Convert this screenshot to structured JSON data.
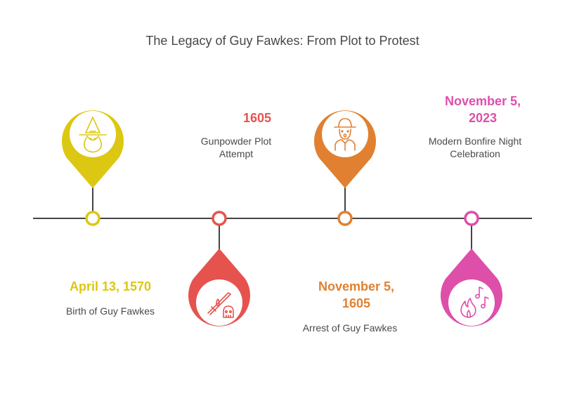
{
  "title": "The Legacy of Guy Fawkes: From Plot to Protest",
  "colors": {
    "line": "#444444",
    "yellow": "#dcc712",
    "red": "#e6534f",
    "orange": "#e08030",
    "pink": "#de4fa9"
  },
  "events": [
    {
      "date": "April 13, 1570",
      "description": "Birth of Guy Fawkes",
      "color": "#dcc712",
      "icon": "witch-icon"
    },
    {
      "date": "1605",
      "description": "Gunpowder Plot Attempt",
      "color": "#e6534f",
      "icon": "musket-skull-icon"
    },
    {
      "date": "November 5, 1605",
      "description": "Arrest of Guy Fawkes",
      "color": "#e08030",
      "icon": "person-in-hat-icon"
    },
    {
      "date": "November 5, 2023",
      "description": "Modern Bonfire Night Celebration",
      "color": "#de4fa9",
      "icon": "fire-music-icon"
    }
  ]
}
